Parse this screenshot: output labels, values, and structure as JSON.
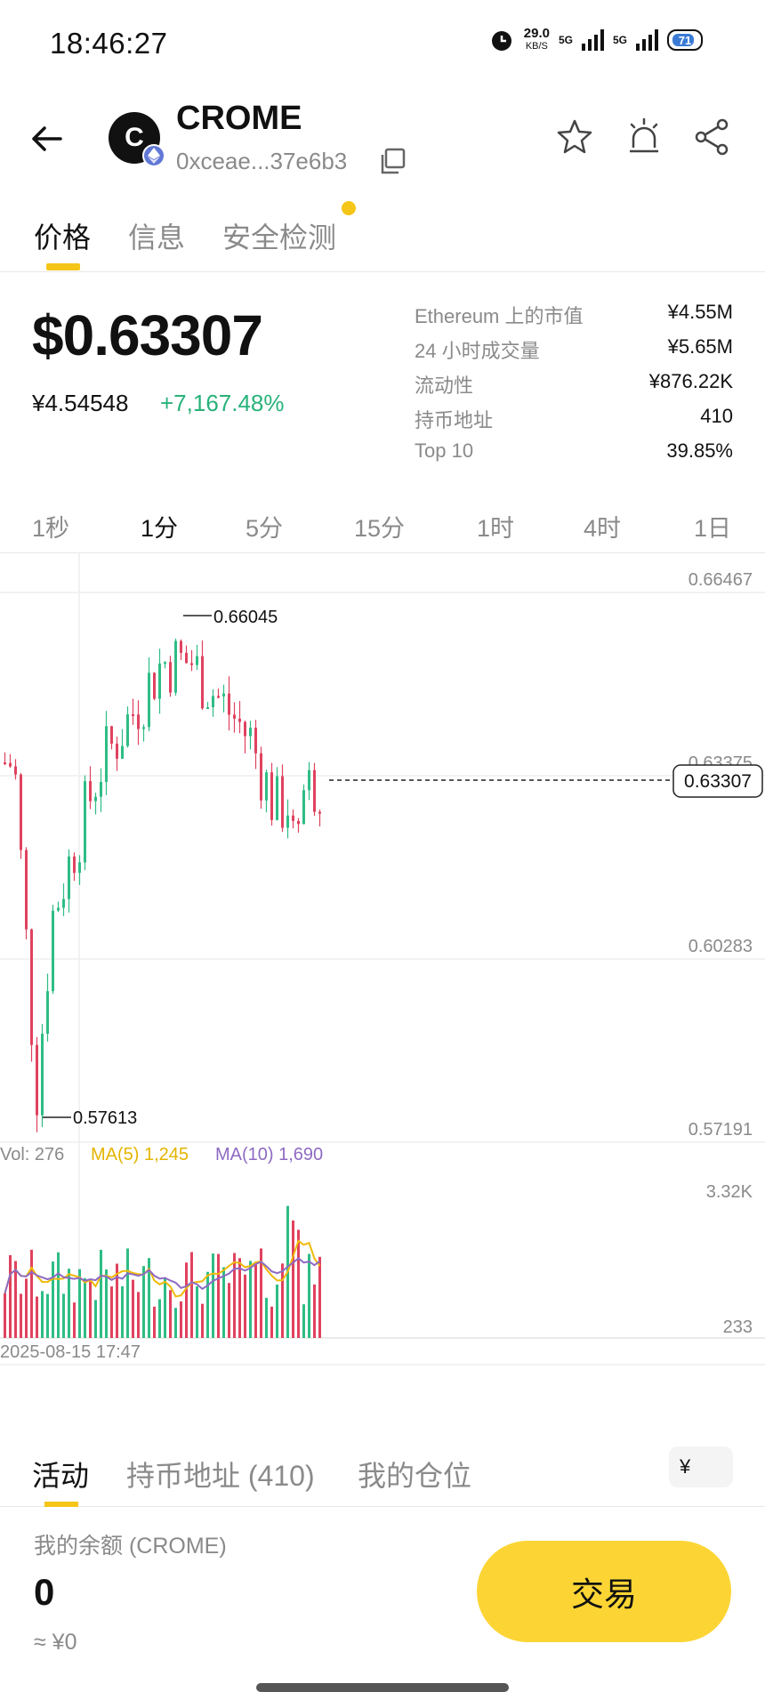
{
  "status": {
    "time": "18:46:27",
    "net_speed": "29.0",
    "net_unit": "KB/S",
    "signal1": "5G",
    "signal2": "5G",
    "battery": "71"
  },
  "header": {
    "token_initial": "C",
    "token_name": "CROME",
    "address": "0xceae...37e6b3",
    "icons": [
      "back-arrow-icon",
      "copy-icon",
      "star-icon",
      "alert-icon",
      "share-icon"
    ]
  },
  "tabs": [
    "价格",
    "信息",
    "安全检测"
  ],
  "price": {
    "usd": "$0.63307",
    "cny": "¥4.54548",
    "change": "+7,167.48%"
  },
  "stats": [
    {
      "label": "Ethereum 上的市值",
      "value": "¥4.55M"
    },
    {
      "label": "24 小时成交量",
      "value": "¥5.65M"
    },
    {
      "label": "流动性",
      "value": "¥876.22K"
    },
    {
      "label": "持币地址",
      "value": "410"
    },
    {
      "label": "Top 10",
      "value": "39.85%"
    }
  ],
  "intervals": [
    "1秒",
    "1分",
    "5分",
    "15分",
    "1时",
    "4时",
    "1日"
  ],
  "chart_data": {
    "type": "candlestick",
    "y_ticks": [
      "0.66467",
      "0.63375",
      "0.60283",
      "0.57191"
    ],
    "ylim": [
      0.57191,
      0.66467
    ],
    "current_price": "0.63307",
    "high_label": "0.66045",
    "low_label": "0.57613",
    "volume": {
      "vol_label": "Vol: 276",
      "ma5_label": "MA(5) 1,245",
      "ma10_label": "MA(10) 1,690",
      "y_ticks": [
        "3.32K",
        "233"
      ],
      "ylim": [
        233,
        3320
      ]
    },
    "date_label": "2025-08-15 17:47",
    "colors": {
      "up": "#2ebd85",
      "down": "#e0425e",
      "ma5": "#f0b90b",
      "ma10": "#8e6ac3"
    }
  },
  "bottom_tabs": [
    "活动",
    "持币地址 (410)",
    "我的仓位"
  ],
  "currency_symbol": "¥",
  "balance": {
    "label": "我的余额 (CROME)",
    "value": "0",
    "cny": "≈ ¥0"
  },
  "trade_label": "交易"
}
